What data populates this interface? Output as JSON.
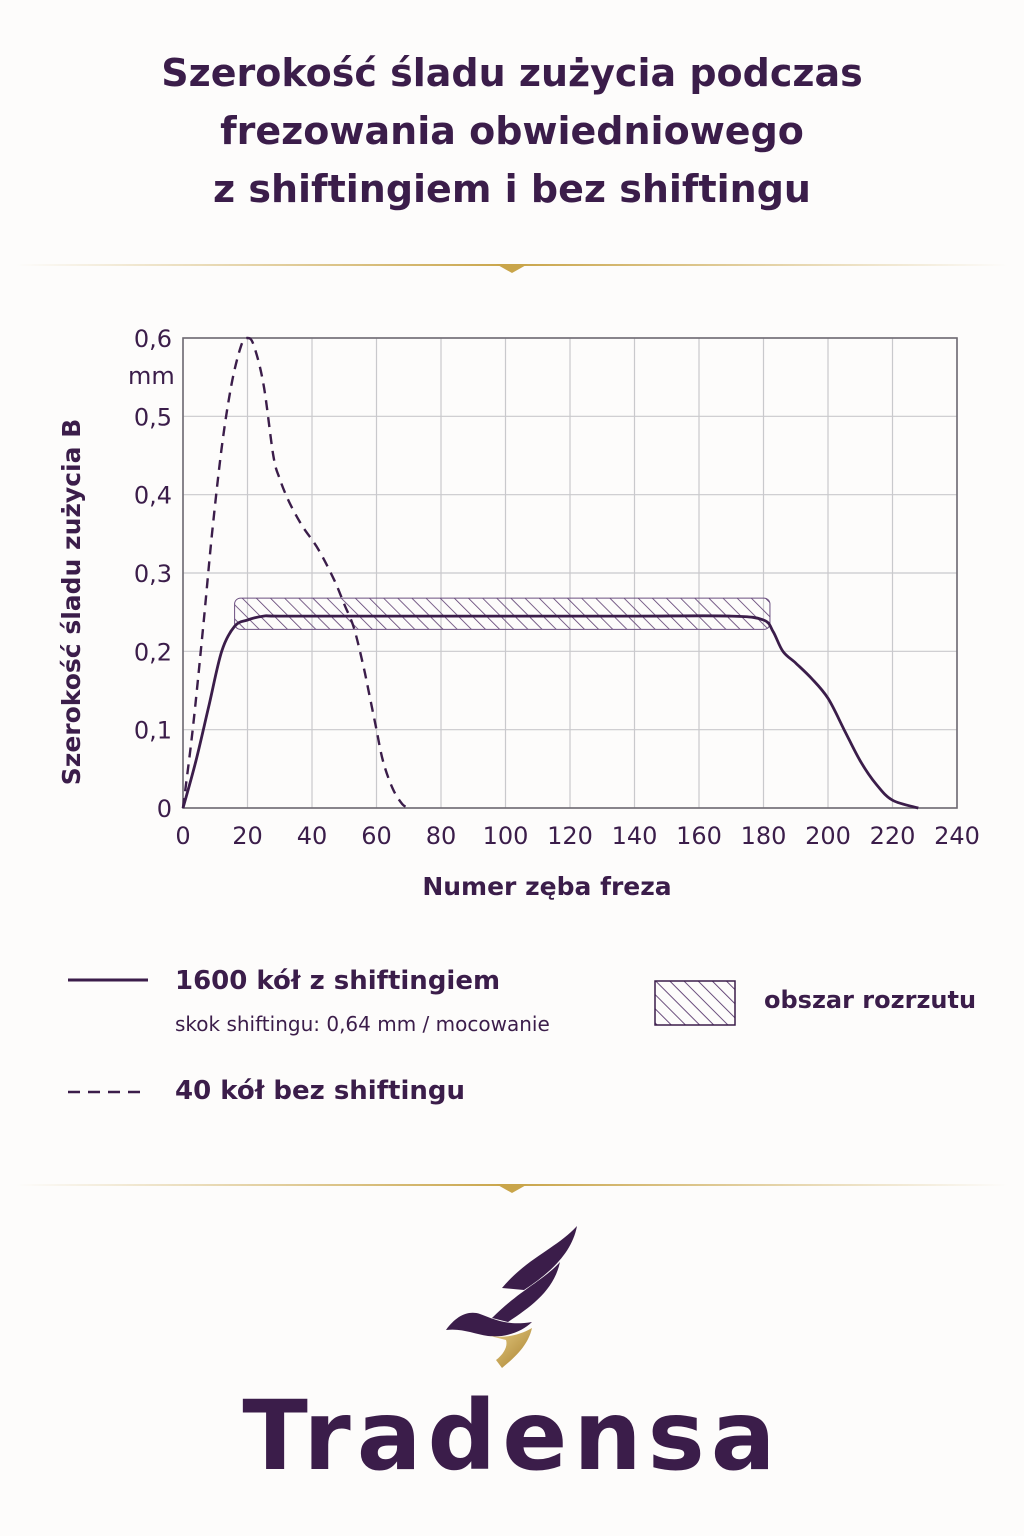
{
  "title_lines": [
    "Szerokość śladu zużycia podczas",
    "frezowania obwiedniowego",
    "z shiftingiem i bez shiftingu"
  ],
  "chart_data": {
    "type": "line",
    "xlabel": "Numer zęba freza",
    "ylabel": "Szerokość śladu zużycia B",
    "y_unit": "mm",
    "xlim": [
      0,
      240
    ],
    "ylim": [
      0,
      0.6
    ],
    "x_ticks": [
      0,
      20,
      40,
      60,
      80,
      100,
      120,
      140,
      160,
      180,
      200,
      220,
      240
    ],
    "x_tick_labels": [
      "0",
      "20",
      "40",
      "60",
      "80",
      "100",
      "120",
      "140",
      "160",
      "180",
      "200",
      "220",
      "240"
    ],
    "y_ticks": [
      0,
      0.1,
      0.2,
      0.3,
      0.4,
      0.5,
      0.6
    ],
    "y_tick_labels": [
      "0",
      "0,1",
      "0,2",
      "0,3",
      "0,4",
      "0,5",
      "0,6"
    ],
    "grid": true,
    "series": [
      {
        "name": "1600 kół z shiftingiem",
        "style": "solid",
        "color": "#3b1d4a",
        "x": [
          0,
          4,
          8,
          12,
          16,
          20,
          25,
          30,
          60,
          100,
          140,
          170,
          180,
          183,
          186,
          190,
          195,
          200,
          205,
          210,
          215,
          220,
          228
        ],
        "y": [
          0,
          0.06,
          0.13,
          0.2,
          0.232,
          0.24,
          0.245,
          0.245,
          0.245,
          0.245,
          0.245,
          0.245,
          0.24,
          0.225,
          0.2,
          0.185,
          0.165,
          0.14,
          0.1,
          0.06,
          0.03,
          0.01,
          0
        ]
      },
      {
        "name": "40 kół bez shiftingu",
        "style": "dashed",
        "color": "#3b1d4a",
        "x": [
          0,
          3,
          6,
          9,
          12,
          15,
          18,
          20,
          22,
          25,
          28,
          30,
          33,
          37,
          42,
          47,
          50,
          53,
          56,
          58,
          60,
          62,
          65,
          68,
          70
        ],
        "y": [
          0,
          0.1,
          0.22,
          0.35,
          0.46,
          0.54,
          0.59,
          0.6,
          0.59,
          0.54,
          0.45,
          0.42,
          0.39,
          0.36,
          0.33,
          0.29,
          0.26,
          0.23,
          0.18,
          0.14,
          0.1,
          0.06,
          0.025,
          0.005,
          0
        ]
      }
    ],
    "scatter_band": {
      "name": "obszar rozrzutu",
      "x": [
        16,
        182
      ],
      "y": [
        0.228,
        0.268
      ]
    }
  },
  "legend": {
    "solid_label": "1600 kół z shiftingiem",
    "solid_sublabel": "skok shiftingu: 0,64 mm / mocowanie",
    "dashed_label": "40 kół bez shiftingu",
    "band_label": "obszar rozrzutu"
  },
  "brand": {
    "name": "Tradensa",
    "color": "#3b1d4a",
    "accent": "#c9a54a"
  }
}
